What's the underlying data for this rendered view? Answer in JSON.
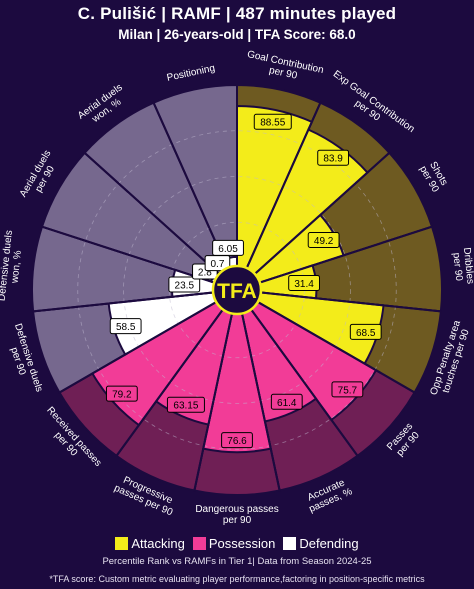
{
  "header": {
    "title": "C. Pulišić | RAMF | 487 minutes played",
    "subtitle": "Milan | 26-years-old | TFA Score: 68.0"
  },
  "colors": {
    "background": "#1c0a3f",
    "attacking": "#f3ec1a",
    "attacking_bg": "#6e5a21",
    "possession": "#f23c97",
    "possession_bg": "#6f1f55",
    "defending": "#ffffff",
    "defending_bg": "#76688e",
    "logo": "#f3ec1a"
  },
  "center_logo": "TFA",
  "chart_data": {
    "type": "radial-bar",
    "scale": [
      0,
      100
    ],
    "categories": [
      {
        "label": "Goal Contribution\nper 90",
        "value": 88.55,
        "group": "Attacking"
      },
      {
        "label": "Exp Goal Contribution\nper 90",
        "value": 83.9,
        "group": "Attacking"
      },
      {
        "label": "Shots\nper 90",
        "value": 49.2,
        "group": "Attacking"
      },
      {
        "label": "Dribbles\nper 90",
        "value": 31.4,
        "group": "Attacking"
      },
      {
        "label": "Opp Penalty area\ntouches per 90",
        "value": 68.5,
        "group": "Attacking"
      },
      {
        "label": "Passes\nper 90",
        "value": 75.7,
        "group": "Possession"
      },
      {
        "label": "Accurate\npasses, %",
        "value": 61.4,
        "group": "Possession"
      },
      {
        "label": "Dangerous passes\nper 90",
        "value": 76.6,
        "group": "Possession"
      },
      {
        "label": "Progressive\npasses per 90",
        "value": 63.15,
        "group": "Possession"
      },
      {
        "label": "Received passes\nper 90",
        "value": 79.2,
        "group": "Possession"
      },
      {
        "label": "Defensive duels\nper 90",
        "value": 58.5,
        "group": "Defending"
      },
      {
        "label": "Defensive duels\nwon, %",
        "value": 23.5,
        "group": "Defending"
      },
      {
        "label": "Aerial duels\nper 90",
        "value": 2.8,
        "group": "Defending"
      },
      {
        "label": "Aerial duels\nwon, %",
        "value": 0.7,
        "group": "Defending"
      },
      {
        "label": "Positioning",
        "value": 6.05,
        "group": "Defending"
      }
    ]
  },
  "legend": {
    "items": [
      {
        "label": "Attacking",
        "color": "#f3ec1a"
      },
      {
        "label": "Possession",
        "color": "#f23c97"
      },
      {
        "label": "Defending",
        "color": "#ffffff"
      }
    ]
  },
  "footer": {
    "note1": "Percentile Rank vs RAMFs in Tier 1| Data from Season 2024-25",
    "note2": "*TFA score: Custom metric evaluating player performance,factoring in position-specific metrics"
  }
}
